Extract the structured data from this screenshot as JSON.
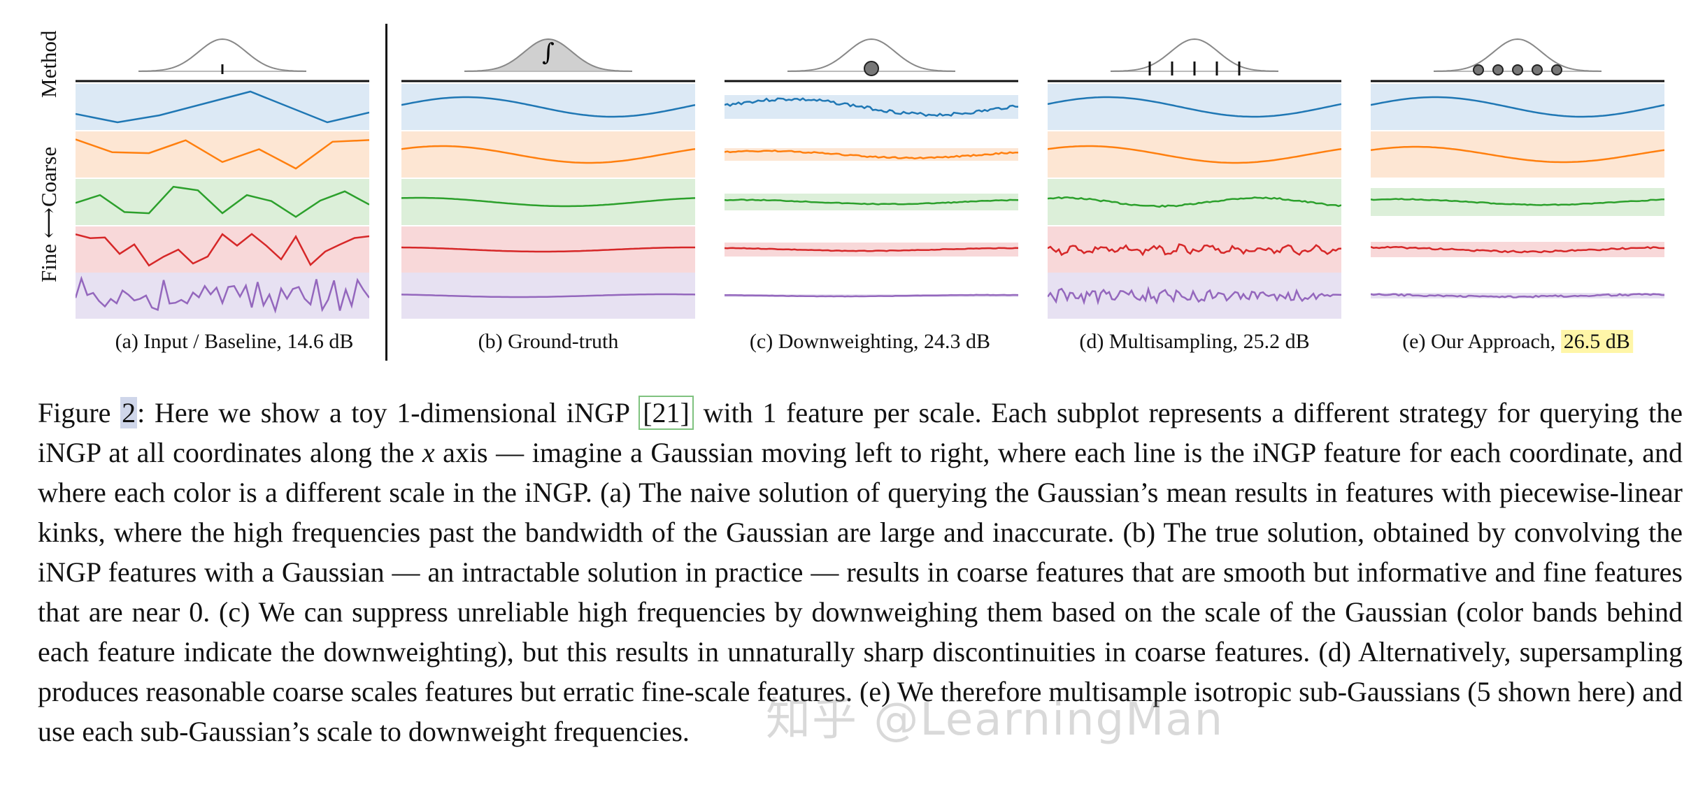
{
  "figure": {
    "y_axis_labels": {
      "method": "Method",
      "coarse": "Coarse",
      "fine_arrow": "Fine ←→ Coarse",
      "fine": "Fine ⟷"
    },
    "band_colors": [
      "#dce9f5",
      "#fde6d3",
      "#dcefd9",
      "#f8d8d9",
      "#e7e1f2"
    ],
    "line_colors": [
      "#1f77b4",
      "#ff7f0e",
      "#2ca02c",
      "#d62728",
      "#9467bd"
    ],
    "panels": [
      {
        "id": "a",
        "caption": "(a) Input / Baseline, 14.6 dB",
        "method_marker": "tick"
      },
      {
        "id": "b",
        "caption": "(b) Ground-truth",
        "method_marker": "integral",
        "marker_text": "∫"
      },
      {
        "id": "c",
        "caption_prefix": "(c) Downweighting, ",
        "caption_value": "24.3 dB",
        "method_marker": "dot"
      },
      {
        "id": "d",
        "caption_prefix": "(d) Multisampling, ",
        "caption_value": "25.2 dB",
        "method_marker": "five-ticks"
      },
      {
        "id": "e",
        "caption_prefix": "(e) Our Approach, ",
        "caption_value": "26.5 dB",
        "method_marker": "five-dots"
      }
    ]
  },
  "caption_text": {
    "fig_label": "Figure ",
    "fig_number": "2",
    "p1": ": Here we show a toy 1-dimensional iNGP ",
    "ref": "[21]",
    "p2": " with 1 feature per scale. Each subplot represents a different strategy for querying the iNGP at all coordinates along the ",
    "var_x": "x",
    "p3": " axis — imagine a Gaussian moving left to right, where each line is the iNGP feature for each coordinate, and where each color is a different scale in the iNGP. (a) The naive solution of querying the Gaussian’s mean results in features with piecewise-linear kinks, where the high frequencies past the bandwidth of the Gaussian are large and inaccurate.  (b) The true solution, obtained by convolving the iNGP features with a Gaussian — an intractable solution in practice — results in coarse features that are smooth but informative and fine features that are near 0.  (c) We can suppress unreliable high frequencies by downweighing them based on the scale of the Gaussian (color bands behind each feature indicate the downweighting), but this results in unnaturally sharp discontinuities in coarse features. (d) Alternatively, supersampling produces reasonable coarse scales features but erratic fine-scale features.  (e) We therefore multisample isotropic sub-Gaussians (5 shown here) and use each sub-Gaussian’s scale to downweight frequencies."
  },
  "watermark": "知乎 @LearningMan"
}
